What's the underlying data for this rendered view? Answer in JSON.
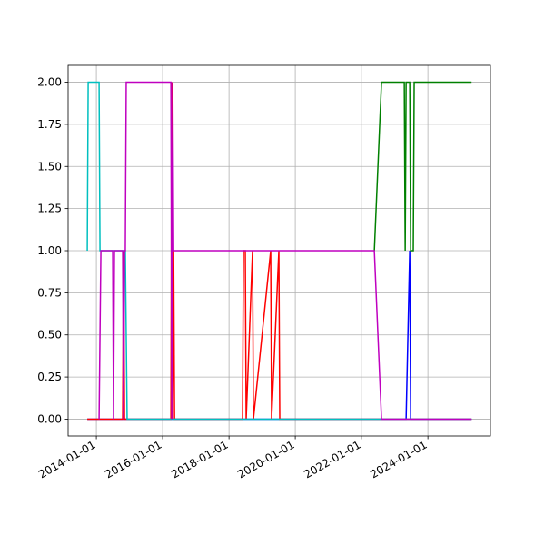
{
  "chart_data": {
    "type": "line",
    "xlim": [
      "2013-02-24",
      "2025-11-20"
    ],
    "ylim": [
      -0.1,
      2.1
    ],
    "xticks": [
      "2014-01-01",
      "2016-01-01",
      "2018-01-01",
      "2020-01-01",
      "2022-01-01",
      "2024-01-01"
    ],
    "yticks": [
      {
        "value": 0,
        "label": "0.00"
      },
      {
        "value": 0.25,
        "label": "0.25"
      },
      {
        "value": 0.5,
        "label": "0.50"
      },
      {
        "value": 0.75,
        "label": "0.75"
      },
      {
        "value": 1,
        "label": "1.00"
      },
      {
        "value": 1.25,
        "label": "1.25"
      },
      {
        "value": 1.5,
        "label": "1.50"
      },
      {
        "value": 1.75,
        "label": "1.75"
      },
      {
        "value": 2,
        "label": "2.00"
      }
    ],
    "grid": true,
    "series": [
      {
        "color": "#0000ff",
        "x": [
          "2013-09-23",
          "2023-05-06",
          "2023-06-15",
          "2023-06-25",
          "2025-04-26"
        ],
        "values": [
          0,
          0,
          1,
          0,
          0
        ]
      },
      {
        "color": "#008000",
        "x": [
          "2022-05-21",
          "2022-08-08",
          "2023-04-16",
          "2023-04-26",
          "2023-05-06",
          "2023-06-15",
          "2023-06-25",
          "2023-07-24",
          "2023-08-03",
          "2025-04-26"
        ],
        "values": [
          1,
          2,
          2,
          1,
          2,
          2,
          1,
          1,
          2,
          2
        ]
      },
      {
        "color": "#ff0000",
        "x": [
          "2013-09-23",
          "2014-10-18",
          "2014-10-28",
          "2014-11-07",
          "2016-04-01",
          "2016-04-11",
          "2016-04-21",
          "2016-05-01",
          "2016-05-11",
          "2018-05-30",
          "2018-06-09",
          "2018-06-29",
          "2018-07-09",
          "2018-09-17",
          "2018-09-27",
          "2019-04-05",
          "2019-04-15",
          "2019-07-04",
          "2019-07-14",
          "2025-04-26"
        ],
        "values": [
          0,
          0,
          1,
          0,
          0,
          2,
          0,
          1,
          0,
          0,
          1,
          1,
          0,
          1,
          0,
          1,
          0,
          1,
          0,
          0
        ]
      },
      {
        "color": "#00bfbf",
        "x": [
          "2013-09-23",
          "2013-10-03",
          "2014-01-31",
          "2014-02-10",
          "2014-11-16",
          "2014-12-06",
          "2025-04-26"
        ],
        "values": [
          1,
          2,
          2,
          1,
          1,
          0,
          0
        ]
      },
      {
        "color": "#bf00bf",
        "x": [
          "2014-01-31",
          "2014-02-20",
          "2014-06-30",
          "2014-07-09",
          "2014-07-19",
          "2014-10-18",
          "2014-10-28",
          "2014-11-07",
          "2014-11-16",
          "2014-11-26",
          "2016-04-01",
          "2016-04-11",
          "2016-04-21",
          "2016-05-01",
          "2022-05-21",
          "2022-08-08",
          "2025-04-26"
        ],
        "values": [
          0,
          1,
          1,
          0,
          1,
          1,
          0,
          1,
          1,
          2,
          2,
          0,
          2,
          1,
          1,
          0,
          0
        ]
      }
    ]
  }
}
